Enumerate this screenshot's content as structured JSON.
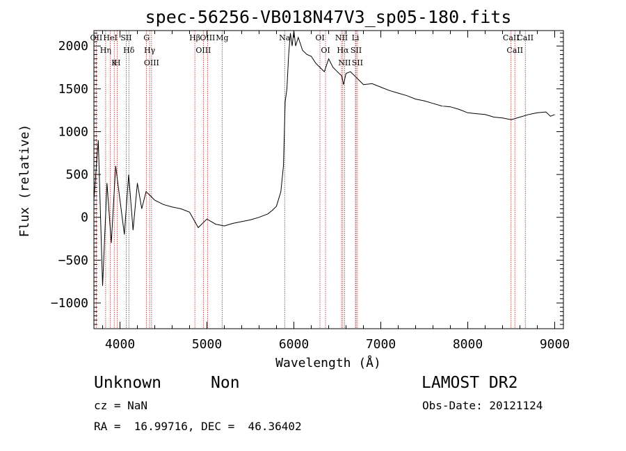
{
  "chart_data": {
    "type": "line",
    "title": "spec-56256-VB018N47V3_sp05-180.fits",
    "xlabel": "Wavelength (Å)",
    "ylabel": "Flux (relative)",
    "xlim": [
      3700,
      9100
    ],
    "ylim": [
      -1300,
      2180
    ],
    "xticks": [
      4000,
      5000,
      6000,
      7000,
      8000,
      9000
    ],
    "xtick_labels": [
      "4000",
      "5000",
      "6000",
      "7000",
      "8000",
      "9000"
    ],
    "yticks": [
      -1000,
      -500,
      0,
      500,
      1000,
      1500,
      2000
    ],
    "ytick_labels": [
      "−1000",
      "−500",
      "0",
      "500",
      "1000",
      "1500",
      "2000"
    ],
    "grid": false,
    "series": [
      {
        "values_note": "",
        "x": [
          3700,
          3750,
          3800,
          3850,
          3900,
          3950,
          4000,
          4050,
          4100,
          4150,
          4200,
          4250,
          4300,
          4350,
          4400,
          4500,
          4600,
          4700,
          4800,
          4900,
          5000,
          5100,
          5200,
          5300,
          5400,
          5500,
          5600,
          5700,
          5750,
          5800,
          5850,
          5880,
          5900,
          5920,
          5940,
          5960,
          5980,
          6000,
          6020,
          6050,
          6100,
          6150,
          6200,
          6250,
          6300,
          6350,
          6400,
          6450,
          6500,
          6550,
          6570,
          6600,
          6650,
          6700,
          6750,
          6800,
          6900,
          7000,
          7100,
          7200,
          7300,
          7400,
          7500,
          7600,
          7700,
          7800,
          7900,
          8000,
          8100,
          8200,
          8300,
          8400,
          8500,
          8600,
          8700,
          8800,
          8900,
          8950,
          9000
        ],
        "y": [
          200,
          900,
          -800,
          400,
          -300,
          600,
          200,
          -200,
          500,
          -150,
          400,
          100,
          300,
          250,
          200,
          150,
          120,
          100,
          60,
          -120,
          -20,
          -80,
          -100,
          -70,
          -50,
          -30,
          0,
          40,
          80,
          130,
          300,
          600,
          1350,
          1500,
          1900,
          2150,
          2000,
          2180,
          2000,
          2100,
          1950,
          1900,
          1880,
          1800,
          1750,
          1700,
          1850,
          1750,
          1700,
          1650,
          1550,
          1680,
          1700,
          1650,
          1600,
          1550,
          1560,
          1520,
          1480,
          1450,
          1420,
          1380,
          1360,
          1330,
          1300,
          1290,
          1260,
          1220,
          1210,
          1200,
          1170,
          1160,
          1140,
          1170,
          1200,
          1220,
          1230,
          1180,
          1200
        ]
      }
    ],
    "lines": [
      {
        "label": "OII",
        "x": 3727
      },
      {
        "label": "Hη",
        "x": 3835
      },
      {
        "label": "HeI",
        "x": 3889
      },
      {
        "label": "K",
        "x": 3934
      },
      {
        "label": "H",
        "x": 3969
      },
      {
        "label": "SII",
        "x": 4072
      },
      {
        "label": "Hδ",
        "x": 4102
      },
      {
        "label": "G",
        "x": 4305
      },
      {
        "label": "Hγ",
        "x": 4341
      },
      {
        "label": "OIII",
        "x": 4363
      },
      {
        "label": "Hβ",
        "x": 4861
      },
      {
        "label": "OIII",
        "x": 4959
      },
      {
        "label": "OIII",
        "x": 5007
      },
      {
        "label": "Mg",
        "x": 5175
      },
      {
        "label": "Na",
        "x": 5894
      },
      {
        "label": "OI",
        "x": 6300
      },
      {
        "label": "OI",
        "x": 6364
      },
      {
        "label": "NII",
        "x": 6548
      },
      {
        "label": "Hα",
        "x": 6563
      },
      {
        "label": "NII",
        "x": 6583
      },
      {
        "label": "Li",
        "x": 6708
      },
      {
        "label": "SII",
        "x": 6716
      },
      {
        "label": "SII",
        "x": 6731
      },
      {
        "label": "CaII",
        "x": 8498
      },
      {
        "label": "CaII",
        "x": 8542
      },
      {
        "label": "CaII",
        "x": 8662
      }
    ]
  },
  "footer": {
    "class_text": "Unknown",
    "subclass_text": "Non",
    "survey_text": "LAMOST DR2",
    "cz_text": "cz = NaN",
    "obs_date_text": "Obs-Date: 20121124",
    "radec_text": "RA =  16.99716, DEC =  46.36402"
  },
  "colors": {
    "spectrum": "#000000",
    "line_marker": "#b22222",
    "axis": "#000000"
  }
}
